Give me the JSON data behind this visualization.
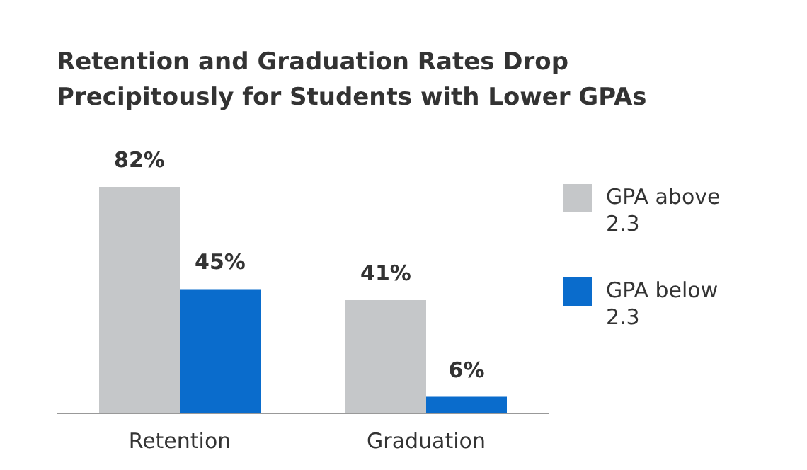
{
  "chart_data": {
    "type": "bar",
    "title": "Retention and Graduation Rates Drop Precipitously for Students with Lower GPAs",
    "categories": [
      "Retention",
      "Graduation"
    ],
    "series": [
      {
        "name": "GPA above 2.3",
        "color": "#c5c7c9",
        "values": [
          82,
          41
        ],
        "value_labels": [
          "82%",
          "41%"
        ]
      },
      {
        "name": "GPA below 2.3",
        "color": "#0a6ccc",
        "values": [
          45,
          6
        ],
        "value_labels": [
          "45%",
          "6%"
        ]
      }
    ],
    "legend": "right",
    "grid": false
  }
}
